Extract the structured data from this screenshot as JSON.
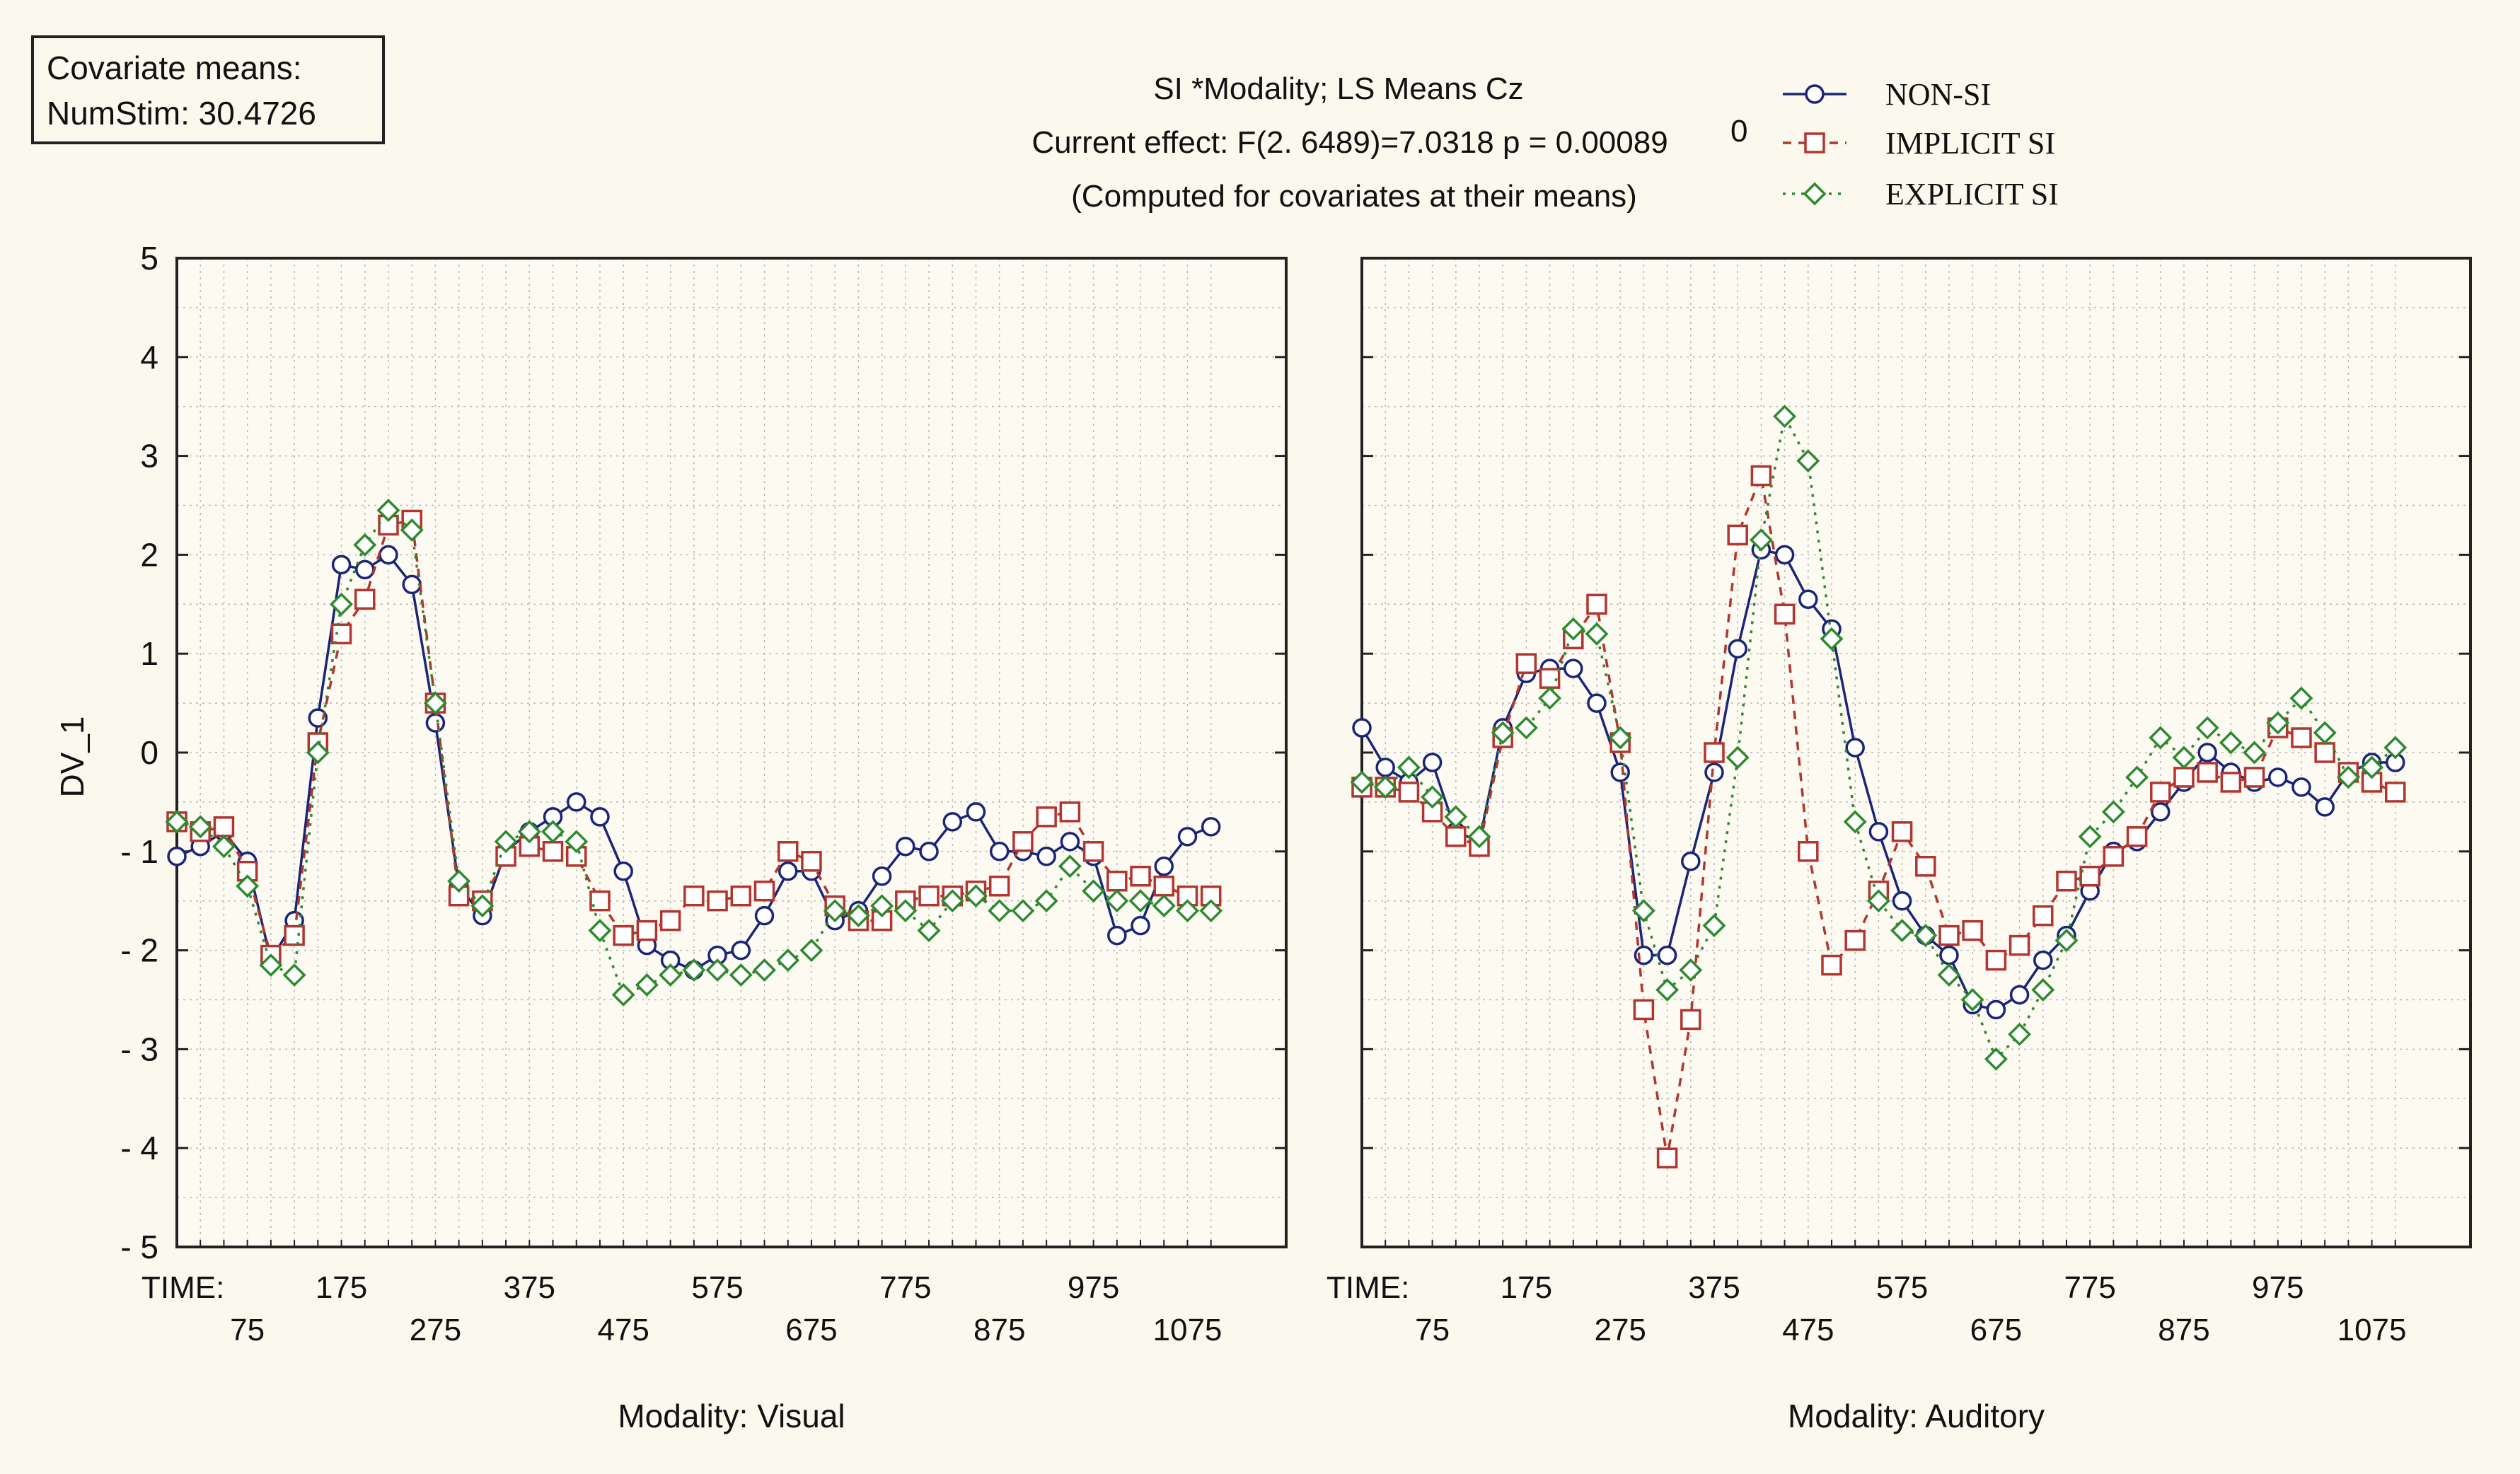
{
  "covariate_box": {
    "line1": "Covariate means:",
    "line2": "NumStim: 30.4726"
  },
  "header": {
    "line1": "SI  *Modality; LS Means Cz",
    "line2": "Current effect: F(2. 6489)=7.0318 p = 0.00089",
    "line3": "(Computed for covariates at their means)",
    "aside": "0"
  },
  "chart_data": {
    "type": "line",
    "ylabel": "DV_1",
    "ylim": [
      -5,
      5
    ],
    "y_ticks": [
      "5",
      "4",
      "3",
      "2",
      "1",
      "0",
      "- 1",
      "- 2",
      "- 3",
      "- 4",
      "- 5"
    ],
    "x_first_label": "TIME:",
    "x_ticks_upper": [
      "175",
      "375",
      "575",
      "775",
      "975"
    ],
    "x_ticks_lower": [
      "75",
      "275",
      "475",
      "675",
      "875",
      "1075"
    ],
    "xlim": [
      0,
      1180
    ],
    "grid": true,
    "legend_position": "top-right",
    "legend": [
      {
        "name": "NON-SI",
        "color": "#1a2577",
        "marker": "circle",
        "dash": "solid"
      },
      {
        "name": "IMPLICIT SI",
        "color": "#b2352f",
        "marker": "square",
        "dash": "dashed"
      },
      {
        "name": "EXPLICIT SI",
        "color": "#2f8a2f",
        "marker": "diamond",
        "dash": "dotted"
      }
    ],
    "x": [
      0,
      25,
      50,
      75,
      100,
      125,
      150,
      175,
      200,
      225,
      250,
      275,
      300,
      325,
      350,
      375,
      400,
      425,
      450,
      475,
      500,
      525,
      550,
      575,
      600,
      625,
      650,
      675,
      700,
      725,
      750,
      775,
      800,
      825,
      850,
      875,
      900,
      925,
      950,
      975,
      1000,
      1025,
      1050,
      1075,
      1100
    ],
    "panels": [
      {
        "label": "Modality: Visual",
        "series": [
          {
            "values": [
              -1.05,
              -0.95,
              -0.8,
              -1.1,
              -2.1,
              -1.7,
              0.35,
              1.9,
              1.85,
              2.0,
              1.7,
              0.3,
              -1.35,
              -1.65,
              -1.0,
              -0.8,
              -0.65,
              -0.5,
              -0.65,
              -1.2,
              -1.95,
              -2.1,
              -2.2,
              -2.05,
              -2.0,
              -1.65,
              -1.2,
              -1.2,
              -1.7,
              -1.6,
              -1.25,
              -0.95,
              -1.0,
              -0.7,
              -0.6,
              -1.0,
              -1.0,
              -1.05,
              -0.9,
              -1.05,
              -1.85,
              -1.75,
              -1.15,
              -0.85,
              -0.75
            ]
          },
          {
            "values": [
              -0.7,
              -0.8,
              -0.75,
              -1.2,
              -2.05,
              -1.85,
              0.1,
              1.2,
              1.55,
              2.3,
              2.35,
              0.5,
              -1.45,
              -1.5,
              -1.05,
              -0.95,
              -1.0,
              -1.05,
              -1.5,
              -1.85,
              -1.8,
              -1.7,
              -1.45,
              -1.5,
              -1.45,
              -1.4,
              -1.0,
              -1.1,
              -1.55,
              -1.7,
              -1.7,
              -1.5,
              -1.45,
              -1.45,
              -1.4,
              -1.35,
              -0.9,
              -0.65,
              -0.6,
              -1.0,
              -1.3,
              -1.25,
              -1.35,
              -1.45,
              -1.45
            ]
          },
          {
            "values": [
              -0.7,
              -0.75,
              -0.95,
              -1.35,
              -2.15,
              -2.25,
              0.0,
              1.5,
              2.1,
              2.45,
              2.25,
              0.5,
              -1.3,
              -1.55,
              -0.9,
              -0.8,
              -0.8,
              -0.9,
              -1.8,
              -2.45,
              -2.35,
              -2.25,
              -2.2,
              -2.2,
              -2.25,
              -2.2,
              -2.1,
              -2.0,
              -1.6,
              -1.65,
              -1.55,
              -1.6,
              -1.8,
              -1.5,
              -1.45,
              -1.6,
              -1.6,
              -1.5,
              -1.15,
              -1.4,
              -1.5,
              -1.5,
              -1.55,
              -1.6,
              -1.6
            ]
          }
        ]
      },
      {
        "label": "Modality: Auditory",
        "series": [
          {
            "values": [
              0.25,
              -0.15,
              -0.3,
              -0.1,
              -0.8,
              -0.9,
              0.25,
              0.8,
              0.85,
              0.85,
              0.5,
              -0.2,
              -2.05,
              -2.05,
              -1.1,
              -0.2,
              1.05,
              2.05,
              2.0,
              1.55,
              1.25,
              0.05,
              -0.8,
              -1.5,
              -1.85,
              -2.05,
              -2.55,
              -2.6,
              -2.45,
              -2.1,
              -1.85,
              -1.4,
              -1.0,
              -0.9,
              -0.6,
              -0.3,
              0.0,
              -0.2,
              -0.3,
              -0.25,
              -0.35,
              -0.55,
              -0.2,
              -0.1,
              -0.1
            ]
          },
          {
            "values": [
              -0.35,
              -0.35,
              -0.4,
              -0.6,
              -0.85,
              -0.95,
              0.15,
              0.9,
              0.75,
              1.15,
              1.5,
              0.1,
              -2.6,
              -4.1,
              -2.7,
              0.0,
              2.2,
              2.8,
              1.4,
              -1.0,
              -2.15,
              -1.9,
              -1.4,
              -0.8,
              -1.15,
              -1.85,
              -1.8,
              -2.1,
              -1.95,
              -1.65,
              -1.3,
              -1.25,
              -1.05,
              -0.85,
              -0.4,
              -0.25,
              -0.2,
              -0.3,
              -0.25,
              0.25,
              0.15,
              0.0,
              -0.2,
              -0.3,
              -0.4
            ]
          },
          {
            "values": [
              -0.3,
              -0.35,
              -0.15,
              -0.45,
              -0.65,
              -0.85,
              0.2,
              0.25,
              0.55,
              1.25,
              1.2,
              0.15,
              -1.6,
              -2.4,
              -2.2,
              -1.75,
              -0.05,
              2.15,
              3.4,
              2.95,
              1.15,
              -0.7,
              -1.5,
              -1.8,
              -1.85,
              -2.25,
              -2.5,
              -3.1,
              -2.85,
              -2.4,
              -1.9,
              -0.85,
              -0.6,
              -0.25,
              0.15,
              -0.05,
              0.25,
              0.1,
              0.0,
              0.3,
              0.55,
              0.2,
              -0.25,
              -0.15,
              0.05
            ]
          }
        ]
      }
    ]
  }
}
